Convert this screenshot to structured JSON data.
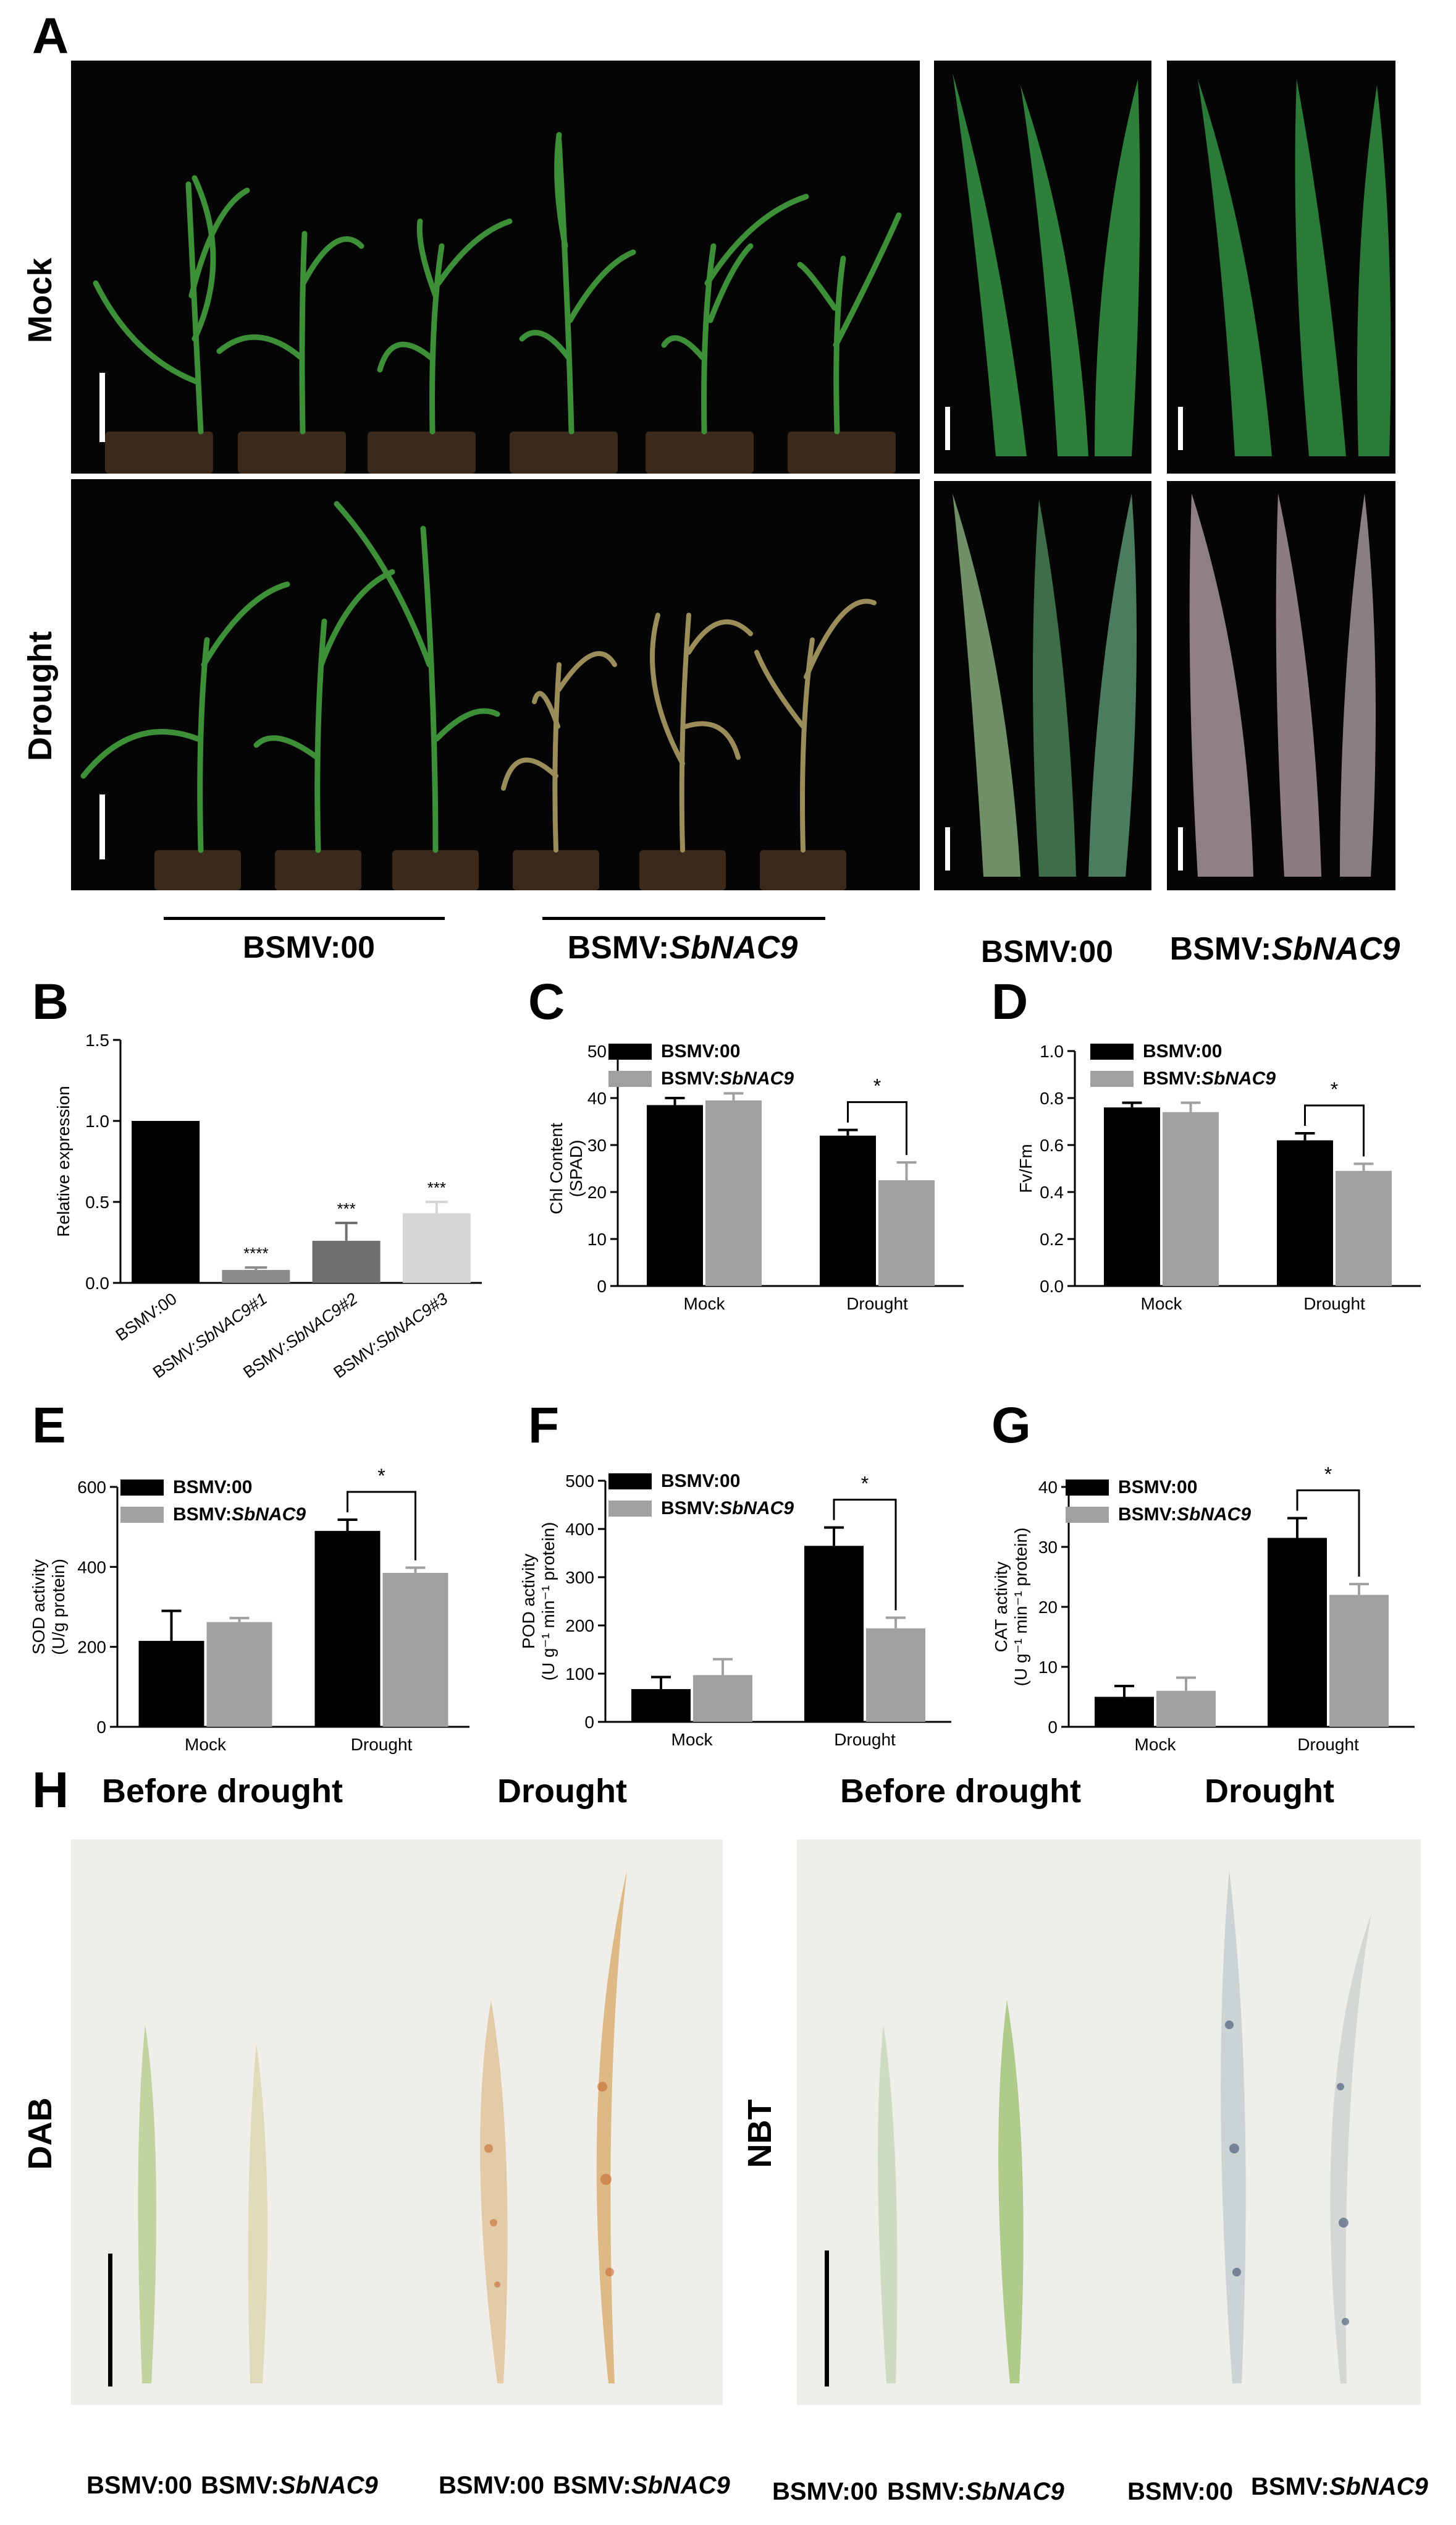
{
  "panel_labels": [
    "A",
    "B",
    "C",
    "D",
    "E",
    "F",
    "G",
    "H"
  ],
  "panelA": {
    "rows": [
      "Mock",
      "Drought"
    ],
    "group_labels": [
      "BSMV:00",
      "BSMV:SbNAC9",
      "BSMV:00",
      "BSMV:SbNAC9"
    ]
  },
  "panelH": {
    "headers": [
      "Before drought",
      "Drought",
      "Before drought",
      "Drought"
    ],
    "stains": [
      "DAB",
      "NBT"
    ],
    "leaf_labels": [
      "BSMV:00",
      "BSMV:SbNAC9",
      "BSMV:00",
      "BSMV:SbNAC9",
      "BSMV:00",
      "BSMV:SbNAC9",
      "BSMV:00",
      "BSMV:SbNAC9"
    ]
  },
  "chart_data": [
    {
      "id": "B",
      "type": "bar",
      "ylabel": "Relative expression",
      "ylim": [
        0,
        1.5
      ],
      "yticks": [
        "0.0",
        "0.5",
        "1.0",
        "1.5"
      ],
      "categories": [
        "BSMV:00",
        "BSMV:SbNAC9#1",
        "BSMV:SbNAC9#2",
        "BSMV:SbNAC9#3"
      ],
      "values": [
        1.0,
        0.08,
        0.26,
        0.43
      ],
      "errors": [
        0,
        0.015,
        0.11,
        0.07
      ],
      "significance": [
        "",
        "****",
        "***",
        "***"
      ],
      "colors": [
        "#000000",
        "#8c8c8c",
        "#707070",
        "#d6d6d6"
      ]
    },
    {
      "id": "C",
      "type": "bar",
      "ylabel_lines": [
        "Chl Content",
        "(SPAD)"
      ],
      "ylim": [
        0,
        50
      ],
      "yticks": [
        "0",
        "10",
        "20",
        "30",
        "40",
        "50"
      ],
      "categories": [
        "Mock",
        "Drought"
      ],
      "legend": [
        "BSMV:00",
        "BSMV:SbNAC9"
      ],
      "series": [
        {
          "name": "BSMV:00",
          "values": [
            38.5,
            32.0
          ],
          "errors": [
            1.5,
            1.2
          ],
          "color": "#000000"
        },
        {
          "name": "BSMV:SbNAC9",
          "values": [
            39.5,
            22.5
          ],
          "errors": [
            1.5,
            3.8
          ],
          "color": "#a0a0a0"
        }
      ],
      "significance": "*"
    },
    {
      "id": "D",
      "type": "bar",
      "ylabel": "Fv/Fm",
      "ylim": [
        0,
        1.0
      ],
      "yticks": [
        "0.0",
        "0.2",
        "0.4",
        "0.6",
        "0.8",
        "1.0"
      ],
      "categories": [
        "Mock",
        "Drought"
      ],
      "legend": [
        "BSMV:00",
        "BSMV:SbNAC9"
      ],
      "series": [
        {
          "name": "BSMV:00",
          "values": [
            0.76,
            0.62
          ],
          "errors": [
            0.02,
            0.03
          ],
          "color": "#000000"
        },
        {
          "name": "BSMV:SbNAC9",
          "values": [
            0.74,
            0.49
          ],
          "errors": [
            0.04,
            0.03
          ],
          "color": "#a0a0a0"
        }
      ],
      "significance": "*"
    },
    {
      "id": "E",
      "type": "bar",
      "ylabel_lines": [
        "SOD activity",
        "(U/g protein)"
      ],
      "ylim": [
        0,
        600
      ],
      "yticks": [
        "0",
        "200",
        "400",
        "600"
      ],
      "categories": [
        "Mock",
        "Drought"
      ],
      "legend": [
        "BSMV:00",
        "BSMV:SbNAC9"
      ],
      "series": [
        {
          "name": "BSMV:00",
          "values": [
            215,
            490
          ],
          "errors": [
            75,
            28
          ],
          "color": "#000000"
        },
        {
          "name": "BSMV:SbNAC9",
          "values": [
            262,
            385
          ],
          "errors": [
            10,
            13
          ],
          "color": "#a0a0a0"
        }
      ],
      "significance": "*"
    },
    {
      "id": "F",
      "type": "bar",
      "ylabel_lines": [
        "POD activity",
        "(U g⁻¹ min⁻¹ protein)"
      ],
      "ylim": [
        0,
        500
      ],
      "yticks": [
        "0",
        "100",
        "200",
        "300",
        "400",
        "500"
      ],
      "categories": [
        "Mock",
        "Drought"
      ],
      "legend": [
        "BSMV:00",
        "BSMV:SbNAC9"
      ],
      "series": [
        {
          "name": "BSMV:00",
          "values": [
            68,
            365
          ],
          "errors": [
            25,
            38
          ],
          "color": "#000000"
        },
        {
          "name": "BSMV:SbNAC9",
          "values": [
            97,
            194
          ],
          "errors": [
            33,
            22
          ],
          "color": "#a0a0a0"
        }
      ],
      "significance": "*"
    },
    {
      "id": "G",
      "type": "bar",
      "ylabel_lines": [
        "CAT activity",
        "(U g⁻¹ min⁻¹ protein)"
      ],
      "ylim": [
        0,
        40
      ],
      "yticks": [
        "0",
        "10",
        "20",
        "30",
        "40"
      ],
      "categories": [
        "Mock",
        "Drought"
      ],
      "legend": [
        "BSMV:00",
        "BSMV:SbNAC9"
      ],
      "series": [
        {
          "name": "BSMV:00",
          "values": [
            5.0,
            31.5
          ],
          "errors": [
            1.8,
            3.3
          ],
          "color": "#000000"
        },
        {
          "name": "BSMV:SbNAC9",
          "values": [
            6.0,
            22.0
          ],
          "errors": [
            2.2,
            1.8
          ],
          "color": "#a0a0a0"
        }
      ],
      "significance": "*"
    }
  ]
}
